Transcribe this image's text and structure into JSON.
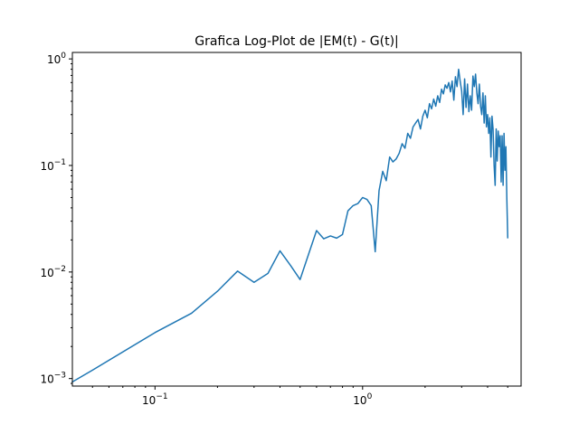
{
  "chart_data": {
    "type": "line",
    "title": "Grafica Log-Plot de |EM(t) - G(t)|",
    "xlabel": "",
    "ylabel": "",
    "xscale": "log",
    "yscale": "log",
    "xlim": [
      0.04,
      5.8
    ],
    "ylim": [
      0.00085,
      1.15
    ],
    "grid": false,
    "x_ticks": [
      {
        "value": 0.1,
        "base": "10",
        "exp": "−1"
      },
      {
        "value": 1,
        "base": "10",
        "exp": "0"
      }
    ],
    "y_ticks": [
      {
        "value": 0.001,
        "base": "10",
        "exp": "−3"
      },
      {
        "value": 0.01,
        "base": "10",
        "exp": "−2"
      },
      {
        "value": 0.1,
        "base": "10",
        "exp": "−1"
      },
      {
        "value": 1,
        "base": "10",
        "exp": "0"
      }
    ],
    "color": "#1f77b4",
    "series": [
      {
        "x": [
          0.04,
          0.05,
          0.1,
          0.15,
          0.2,
          0.25,
          0.3,
          0.35,
          0.4,
          0.45,
          0.5,
          0.55,
          0.6,
          0.65,
          0.7,
          0.75,
          0.8,
          0.85,
          0.9,
          0.95,
          1.0,
          1.05,
          1.1,
          1.15,
          1.2,
          1.25,
          1.3,
          1.35,
          1.4,
          1.45,
          1.5,
          1.55,
          1.6,
          1.65,
          1.7,
          1.75,
          1.8,
          1.85,
          1.9,
          1.95,
          2.0,
          2.05,
          2.1,
          2.15,
          2.2,
          2.25,
          2.3,
          2.35,
          2.4,
          2.45,
          2.5,
          2.55,
          2.6,
          2.65,
          2.7,
          2.75,
          2.8,
          2.85,
          2.9,
          2.95,
          3.0,
          3.05,
          3.1,
          3.15,
          3.2,
          3.25,
          3.3,
          3.35,
          3.4,
          3.45,
          3.5,
          3.55,
          3.6,
          3.65,
          3.7,
          3.75,
          3.8,
          3.85,
          3.9,
          3.95,
          4.0,
          4.05,
          4.1,
          4.15,
          4.2,
          4.25,
          4.3,
          4.35,
          4.4,
          4.45,
          4.5,
          4.55,
          4.6,
          4.65,
          4.7,
          4.75,
          4.8,
          4.85,
          4.9,
          4.95,
          5.0
        ],
        "y": [
          0.00093,
          0.0012,
          0.0027,
          0.0041,
          0.0066,
          0.0102,
          0.008,
          0.0097,
          0.0158,
          0.0115,
          0.0085,
          0.0148,
          0.0245,
          0.0205,
          0.0218,
          0.0208,
          0.0225,
          0.0375,
          0.042,
          0.044,
          0.05,
          0.048,
          0.042,
          0.0155,
          0.058,
          0.088,
          0.072,
          0.12,
          0.108,
          0.115,
          0.13,
          0.16,
          0.145,
          0.2,
          0.18,
          0.23,
          0.25,
          0.27,
          0.22,
          0.29,
          0.33,
          0.28,
          0.38,
          0.34,
          0.42,
          0.36,
          0.45,
          0.39,
          0.52,
          0.47,
          0.57,
          0.53,
          0.6,
          0.49,
          0.62,
          0.41,
          0.68,
          0.55,
          0.8,
          0.62,
          0.5,
          0.3,
          0.65,
          0.35,
          0.58,
          0.32,
          0.45,
          0.33,
          0.69,
          0.55,
          0.72,
          0.48,
          0.38,
          0.58,
          0.36,
          0.3,
          0.48,
          0.25,
          0.45,
          0.23,
          0.3,
          0.2,
          0.28,
          0.12,
          0.29,
          0.22,
          0.1,
          0.065,
          0.22,
          0.11,
          0.21,
          0.15,
          0.19,
          0.07,
          0.19,
          0.065,
          0.2,
          0.09,
          0.15,
          0.05,
          0.021
        ]
      }
    ]
  }
}
